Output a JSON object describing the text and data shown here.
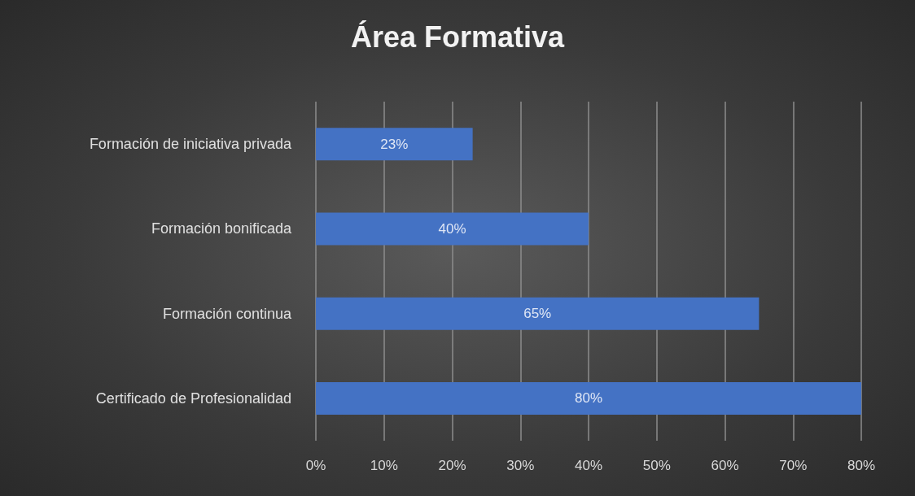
{
  "chart_data": {
    "type": "bar",
    "title": "Área Formativa",
    "orientation": "horizontal",
    "categories": [
      "Formación de iniciativa privada",
      "Formación bonificada",
      "Formación continua",
      "Certificado de Profesionalidad"
    ],
    "values": [
      23,
      40,
      65,
      80
    ],
    "value_labels": [
      "23%",
      "40%",
      "65%",
      "80%"
    ],
    "color": "#4472c4",
    "xlim": [
      0,
      80
    ],
    "xticks": [
      {
        "value": 0,
        "label": "0%"
      },
      {
        "value": 10,
        "label": "10%"
      },
      {
        "value": 20,
        "label": "20%"
      },
      {
        "value": 30,
        "label": "30%"
      },
      {
        "value": 40,
        "label": "40%"
      },
      {
        "value": 50,
        "label": "50%"
      },
      {
        "value": 60,
        "label": "60%"
      },
      {
        "value": 70,
        "label": "70%"
      },
      {
        "value": 80,
        "label": "80%"
      }
    ],
    "grid": "x"
  }
}
